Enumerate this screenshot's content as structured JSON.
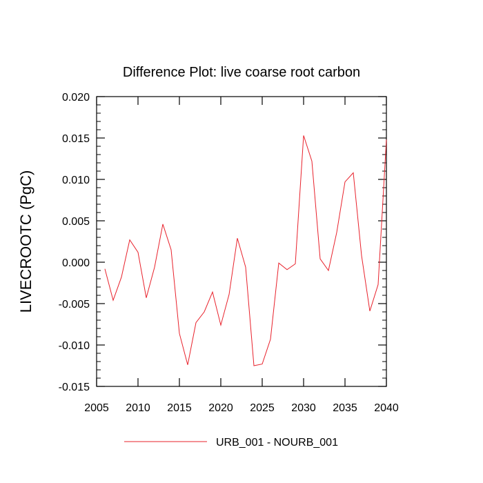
{
  "chart_data": {
    "type": "line",
    "title": "Difference Plot: live coarse root carbon",
    "xlabel": "",
    "ylabel": "LIVECROOTC  (PgC)",
    "xlim": [
      2005,
      2040
    ],
    "ylim": [
      -0.015,
      0.02
    ],
    "x_ticks": [
      2005,
      2010,
      2015,
      2020,
      2025,
      2030,
      2035,
      2040
    ],
    "x_tick_labels": [
      "2005",
      "2010",
      "2015",
      "2020",
      "2025",
      "2030",
      "2035",
      "2040"
    ],
    "y_ticks": [
      -0.015,
      -0.01,
      -0.005,
      0.0,
      0.005,
      0.01,
      0.015,
      0.02
    ],
    "y_tick_labels": [
      "-0.015",
      "-0.010",
      "-0.005",
      "0.000",
      "0.005",
      "0.010",
      "0.015",
      "0.020"
    ],
    "grid": false,
    "legend_position": "bottom-center",
    "series": [
      {
        "name": "URB_001 - NOURB_001",
        "color": "#e8202a",
        "x": [
          2006,
          2007,
          2008,
          2009,
          2010,
          2011,
          2012,
          2013,
          2014,
          2015,
          2016,
          2017,
          2018,
          2019,
          2020,
          2021,
          2022,
          2023,
          2024,
          2025,
          2026,
          2027,
          2028,
          2029,
          2030,
          2031,
          2032,
          2033,
          2034,
          2035,
          2036,
          2037,
          2038,
          2039,
          2040
        ],
        "y": [
          -0.0008,
          -0.0046,
          -0.0018,
          0.0027,
          0.0012,
          -0.0043,
          -0.0006,
          0.0046,
          0.0015,
          -0.0086,
          -0.0124,
          -0.0073,
          -0.006,
          -0.0036,
          -0.0076,
          -0.0039,
          0.0029,
          -0.0006,
          -0.0125,
          -0.0123,
          -0.0093,
          -0.0001,
          -0.0009,
          -0.0002,
          0.0153,
          0.0122,
          0.0004,
          -0.001,
          0.0036,
          0.0097,
          0.0108,
          0.0008,
          -0.0059,
          -0.0027,
          0.0148
        ]
      }
    ]
  }
}
